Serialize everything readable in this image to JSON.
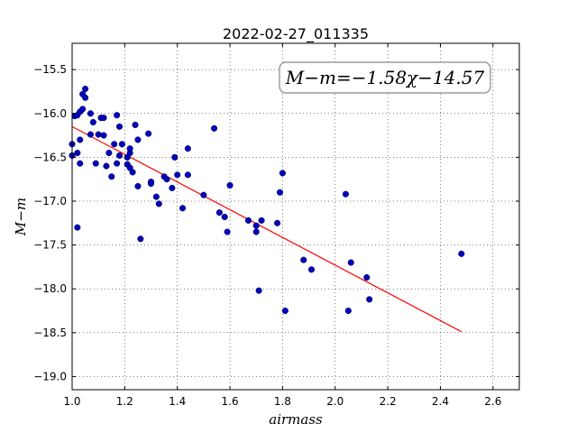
{
  "chart_data": {
    "type": "scatter",
    "title": "2022-02-27_011335",
    "xlabel": "airmass",
    "ylabel": "M−m",
    "xlim": [
      1.0,
      2.7
    ],
    "ylim": [
      -19.15,
      -15.2
    ],
    "x_ticks": [
      1.0,
      1.2,
      1.4,
      1.6,
      1.8,
      2.0,
      2.2,
      2.4,
      2.6
    ],
    "x_tick_labels": [
      "1.0",
      "1.2",
      "1.4",
      "1.6",
      "1.8",
      "2.0",
      "2.2",
      "2.4",
      "2.6"
    ],
    "y_ticks": [
      -15.5,
      -16.0,
      -16.5,
      -17.0,
      -17.5,
      -18.0,
      -18.5,
      -19.0
    ],
    "y_tick_labels": [
      "−15.5",
      "−16.0",
      "−16.5",
      "−17.0",
      "−17.5",
      "−18.0",
      "−18.5",
      "−19.0"
    ],
    "grid": true,
    "annotation": "M−m=−1.58χ−14.57",
    "fit": {
      "slope": -1.58,
      "intercept": -14.57,
      "x_range": [
        1.0,
        2.48
      ],
      "color": "#ff0000"
    },
    "marker_color": "#0000bf",
    "points": [
      [
        1.0,
        -16.35
      ],
      [
        1.0,
        -16.48
      ],
      [
        1.01,
        -16.03
      ],
      [
        1.02,
        -16.02
      ],
      [
        1.02,
        -16.45
      ],
      [
        1.02,
        -17.3
      ],
      [
        1.03,
        -15.98
      ],
      [
        1.03,
        -16.3
      ],
      [
        1.03,
        -16.57
      ],
      [
        1.04,
        -15.78
      ],
      [
        1.04,
        -15.95
      ],
      [
        1.05,
        -15.82
      ],
      [
        1.05,
        -15.72
      ],
      [
        1.07,
        -16.0
      ],
      [
        1.07,
        -16.24
      ],
      [
        1.08,
        -16.1
      ],
      [
        1.09,
        -16.57
      ],
      [
        1.1,
        -16.24
      ],
      [
        1.11,
        -16.05
      ],
      [
        1.12,
        -16.05
      ],
      [
        1.12,
        -16.25
      ],
      [
        1.13,
        -16.6
      ],
      [
        1.14,
        -16.45
      ],
      [
        1.15,
        -16.72
      ],
      [
        1.16,
        -16.35
      ],
      [
        1.17,
        -16.57
      ],
      [
        1.17,
        -16.02
      ],
      [
        1.18,
        -16.15
      ],
      [
        1.18,
        -16.48
      ],
      [
        1.19,
        -16.35
      ],
      [
        1.21,
        -16.5
      ],
      [
        1.21,
        -16.58
      ],
      [
        1.22,
        -16.45
      ],
      [
        1.22,
        -16.4
      ],
      [
        1.22,
        -16.62
      ],
      [
        1.23,
        -16.67
      ],
      [
        1.24,
        -16.13
      ],
      [
        1.25,
        -16.3
      ],
      [
        1.25,
        -16.83
      ],
      [
        1.26,
        -17.43
      ],
      [
        1.29,
        -16.23
      ],
      [
        1.3,
        -16.78
      ],
      [
        1.3,
        -16.8
      ],
      [
        1.32,
        -16.95
      ],
      [
        1.33,
        -17.03
      ],
      [
        1.35,
        -16.72
      ],
      [
        1.36,
        -16.75
      ],
      [
        1.38,
        -16.85
      ],
      [
        1.39,
        -16.5
      ],
      [
        1.4,
        -16.7
      ],
      [
        1.42,
        -17.08
      ],
      [
        1.44,
        -16.4
      ],
      [
        1.44,
        -16.7
      ],
      [
        1.5,
        -16.93
      ],
      [
        1.54,
        -16.17
      ],
      [
        1.56,
        -17.13
      ],
      [
        1.58,
        -17.18
      ],
      [
        1.59,
        -17.35
      ],
      [
        1.6,
        -16.82
      ],
      [
        1.67,
        -17.22
      ],
      [
        1.7,
        -17.28
      ],
      [
        1.7,
        -17.35
      ],
      [
        1.71,
        -18.02
      ],
      [
        1.72,
        -17.22
      ],
      [
        1.78,
        -17.25
      ],
      [
        1.79,
        -16.9
      ],
      [
        1.8,
        -16.68
      ],
      [
        1.81,
        -18.25
      ],
      [
        1.88,
        -17.67
      ],
      [
        1.91,
        -17.78
      ],
      [
        2.04,
        -16.92
      ],
      [
        2.05,
        -18.25
      ],
      [
        2.06,
        -17.7
      ],
      [
        2.12,
        -17.87
      ],
      [
        2.13,
        -18.12
      ],
      [
        2.48,
        -17.6
      ]
    ]
  }
}
